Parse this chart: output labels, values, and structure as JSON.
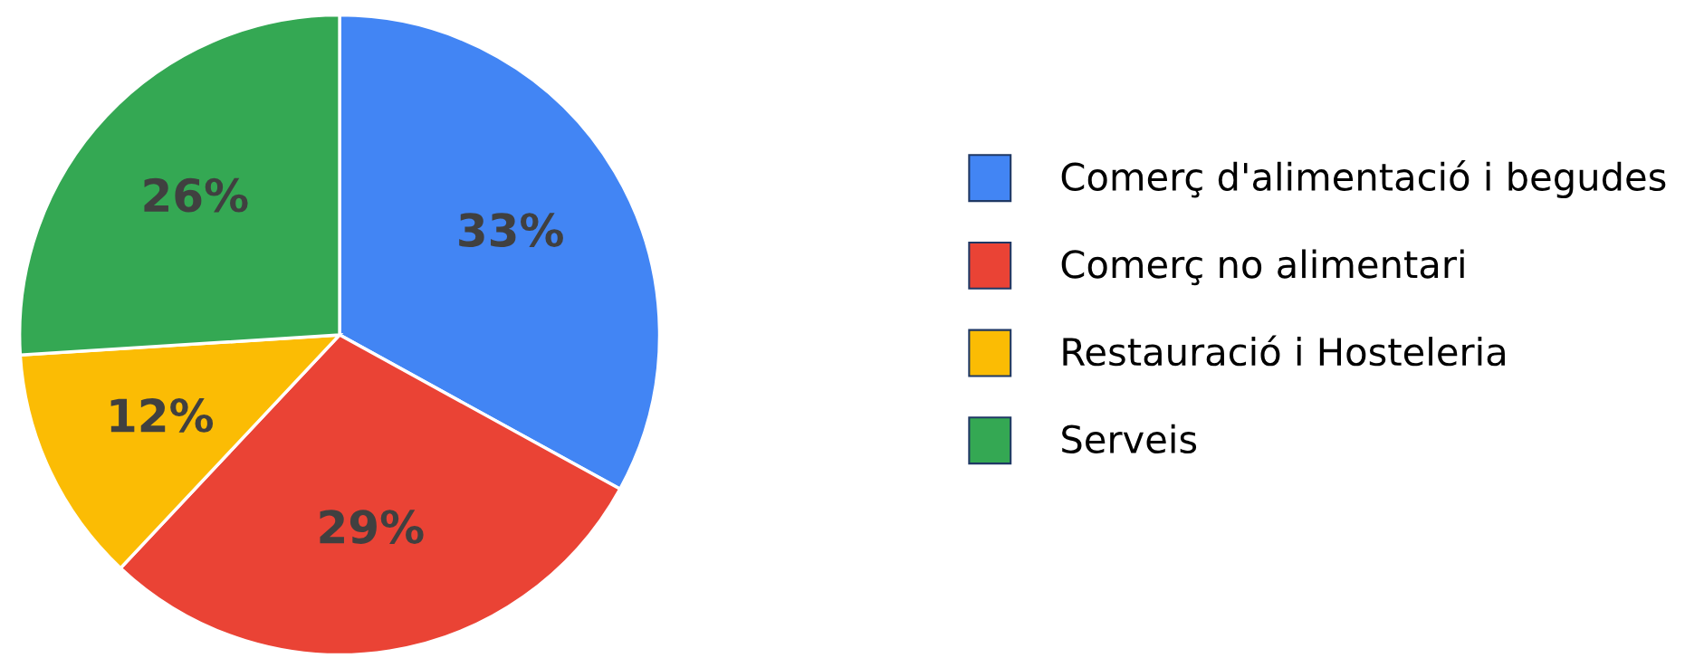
{
  "chart_data": {
    "type": "pie",
    "categories": [
      "Comerç d'alimentació i begudes",
      "Comerç no alimentari",
      "Restauració i Hosteleria",
      "Serveis"
    ],
    "values": [
      33,
      29,
      12,
      26
    ],
    "colors": [
      "#4285f4",
      "#ea4335",
      "#fbbc04",
      "#34a853"
    ],
    "value_labels": [
      "33%",
      "29%",
      "12%",
      "26%"
    ],
    "legend": "right"
  }
}
